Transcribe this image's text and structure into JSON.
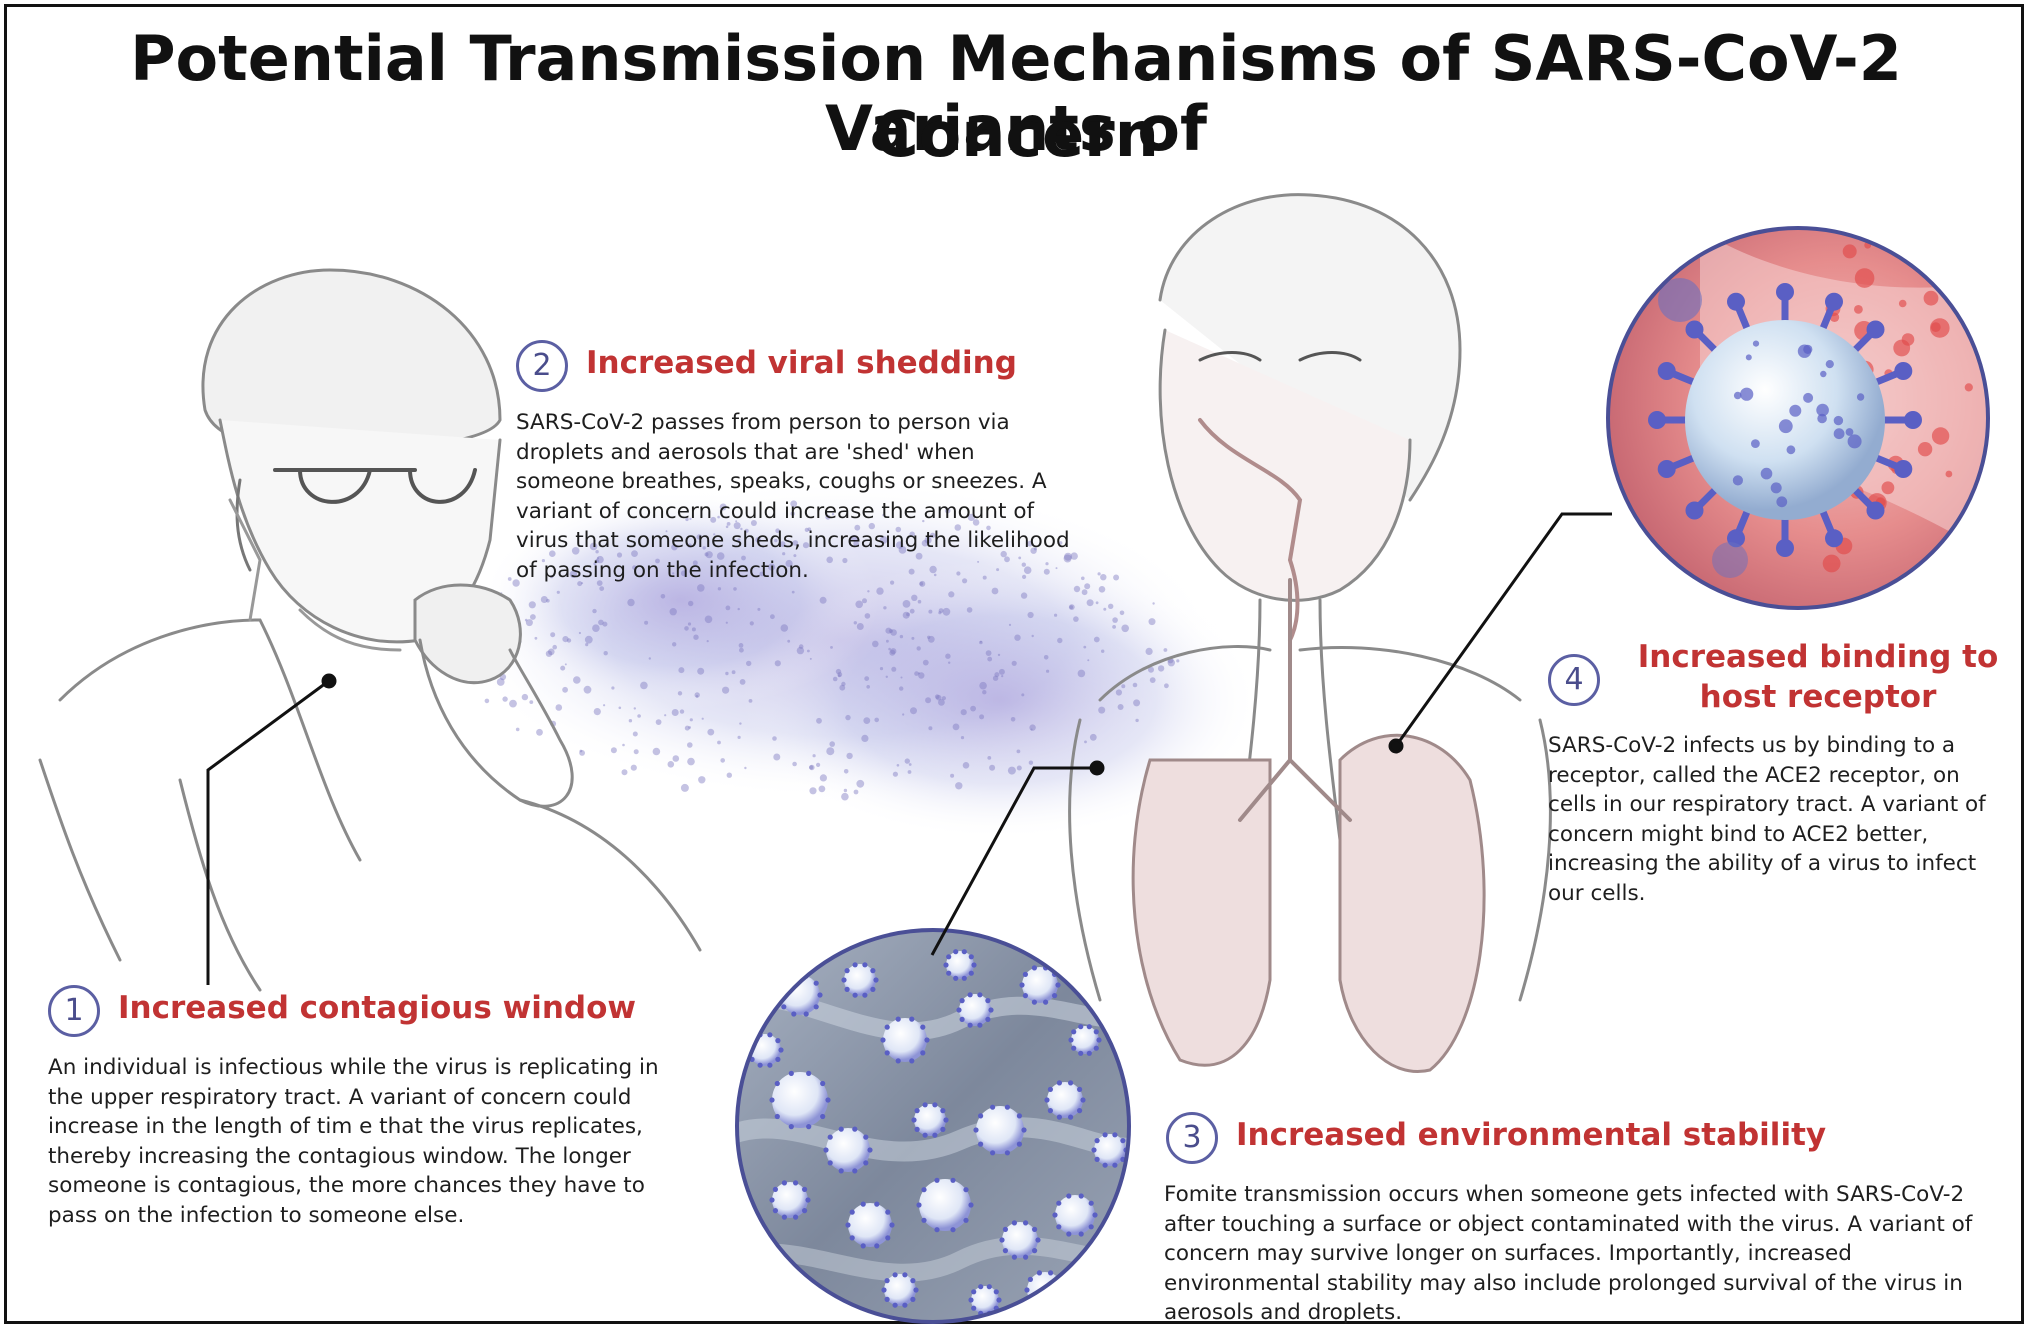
{
  "title": {
    "line1": "Potential Transmission Mechanisms of SARS-CoV-2 Variants of",
    "line2": "Concern"
  },
  "callouts": [
    {
      "number": "1",
      "heading": "Increased contagious window",
      "body": "An individual is infectious while the virus is replicating in\nthe upper respiratory tract. A variant of concern could\nincrease in the length of tim e that the virus replicates,\nthereby increasing the contagious window. The longer\nsomeone is contagious, the more chances they have to\npass on the infection to someone else."
    },
    {
      "number": "2",
      "heading": "Increased viral shedding",
      "body": "SARS-CoV-2 passes from person to person via\ndroplets and aerosols that are 'shed' when\nsomeone breathes, speaks, coughs or sneezes. A\nvariant of concern could increase the amount of\nvirus that someone sheds, increasing the likelihood\nof passing on the infection."
    },
    {
      "number": "3",
      "heading": "Increased environmental stability",
      "body": "Fomite transmission occurs when someone gets infected with SARS-CoV-2\nafter touching a surface or object contaminated with the virus. A variant of\nconcern may survive longer on surfaces. Importantly, increased\nenvironmental stability may also include prolonged survival of the virus in\naerosols and droplets."
    },
    {
      "number": "4",
      "heading": "Increased binding to host receptor",
      "body": "SARS-CoV-2 infects us by binding to a\nreceptor, called the ACE2 receptor, on\ncells in our respiratory tract. A variant of\nconcern might bind to ACE2 better,\nincreasing the ability of a virus to infect\nour cells."
    }
  ],
  "colors": {
    "heading_red": "#c13333",
    "badge_border": "#5b5fa3",
    "aerosol_purple": "#8e86c9",
    "virus_blue": "#5a5fc4",
    "tissue_pink": "#e58e8e",
    "surface_gray": "#8c98ab"
  },
  "illustrations": {
    "left_figure": "coughing-person",
    "right_figure": "woman-respiratory-anatomy",
    "aerosol": "aerosol-cloud",
    "surface_inset": "virus-on-surface-inset",
    "receptor_inset": "virus-binding-inset"
  }
}
